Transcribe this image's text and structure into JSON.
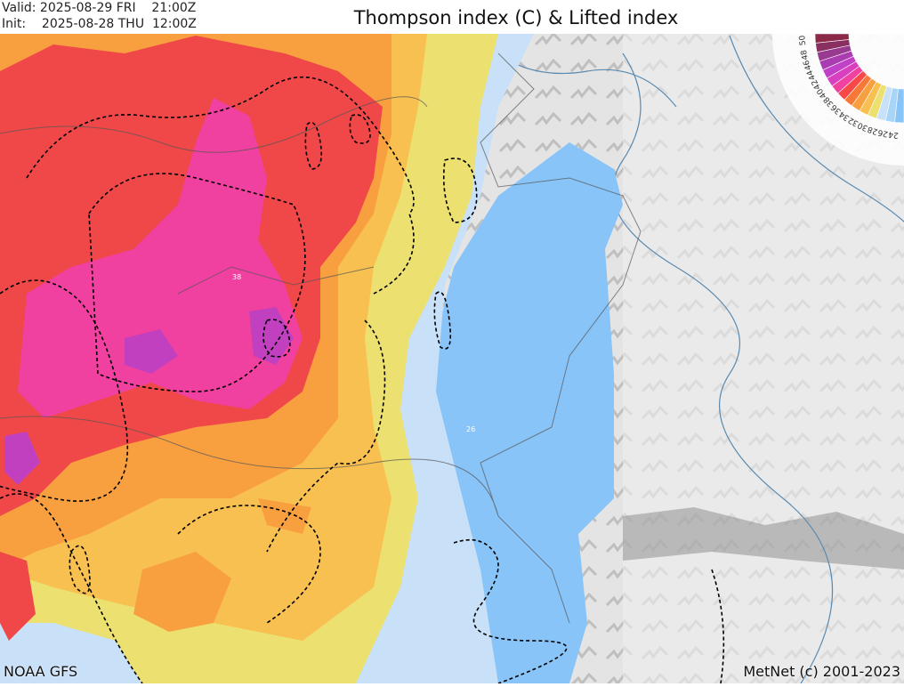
{
  "header": {
    "valid_label": "Valid:",
    "valid_value": "2025-08-29 FRI    21:00Z",
    "init_label": "Init:",
    "init_value": "2025-08-28 THU  12:00Z",
    "title": "Thompson index (C) & Lifted index"
  },
  "map": {
    "contour_labels": [
      "38",
      "26"
    ],
    "legend": {
      "values": [
        "50",
        "48",
        "46",
        "44",
        "42",
        "40",
        "38",
        "36",
        "34",
        "32",
        "30",
        "28",
        "26",
        "24"
      ],
      "colors": [
        "#8c2848",
        "#8a3060",
        "#983a90",
        "#a83cb0",
        "#c040c8",
        "#d840c0",
        "#f040a0",
        "#f84848",
        "#f87838",
        "#f8a040",
        "#f8c050",
        "#ece070",
        "#c8e0f8",
        "#a8d4f8",
        "#88c4f8"
      ]
    },
    "terrain_color": "#d8d8d8",
    "contour_style": "dashed black"
  },
  "footer": {
    "source": "NOAA GFS",
    "copyright": "MetNet (c) 2001-2023"
  }
}
